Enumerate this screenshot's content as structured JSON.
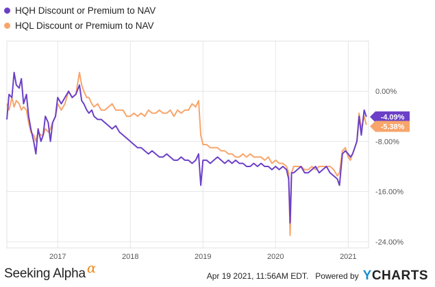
{
  "header": {
    "legend": [
      {
        "label": "HQH Discount or Premium to NAV",
        "color": "#6b3fc7"
      },
      {
        "label": "HQL Discount or Premium to NAV",
        "color": "#f7a56a"
      }
    ]
  },
  "chart_data": {
    "type": "line",
    "title": "",
    "xlabel": "",
    "ylabel": "",
    "xlim": [
      2016.3,
      2021.28
    ],
    "ylim": [
      -25,
      8
    ],
    "x_ticks": [
      {
        "value": 2017,
        "label": "2017"
      },
      {
        "value": 2018,
        "label": "2018"
      },
      {
        "value": 2019,
        "label": "2019"
      },
      {
        "value": 2020,
        "label": "2020"
      },
      {
        "value": 2021,
        "label": "2021"
      }
    ],
    "y_ticks": [
      {
        "value": 0,
        "label": "0.00%"
      },
      {
        "value": -8,
        "label": "-8.00%"
      },
      {
        "value": -16,
        "label": "-16.00%"
      },
      {
        "value": -24,
        "label": "-24.00%"
      }
    ],
    "grid": {
      "horizontal": true,
      "vertical": true
    },
    "series": [
      {
        "name": "HQH Discount or Premium to NAV",
        "color": "#6b3fc7",
        "end_label": "-4.09%",
        "x": [
          2016.3,
          2016.33,
          2016.37,
          2016.4,
          2016.43,
          2016.47,
          2016.5,
          2016.53,
          2016.57,
          2016.6,
          2016.63,
          2016.67,
          2016.7,
          2016.73,
          2016.77,
          2016.8,
          2016.83,
          2016.87,
          2016.9,
          2016.93,
          2016.97,
          2017.0,
          2017.05,
          2017.1,
          2017.15,
          2017.2,
          2017.25,
          2017.3,
          2017.33,
          2017.36,
          2017.4,
          2017.43,
          2017.47,
          2017.5,
          2017.55,
          2017.6,
          2017.65,
          2017.7,
          2017.75,
          2017.8,
          2017.85,
          2017.9,
          2017.95,
          2018.0,
          2018.05,
          2018.1,
          2018.15,
          2018.2,
          2018.25,
          2018.3,
          2018.35,
          2018.4,
          2018.45,
          2018.5,
          2018.55,
          2018.6,
          2018.65,
          2018.7,
          2018.75,
          2018.8,
          2018.85,
          2018.9,
          2018.94,
          2018.97,
          2019.0,
          2019.05,
          2019.1,
          2019.15,
          2019.2,
          2019.25,
          2019.3,
          2019.35,
          2019.4,
          2019.45,
          2019.5,
          2019.55,
          2019.6,
          2019.65,
          2019.7,
          2019.75,
          2019.8,
          2019.85,
          2019.9,
          2019.95,
          2020.0,
          2020.05,
          2020.1,
          2020.15,
          2020.18,
          2020.2,
          2020.22,
          2020.25,
          2020.3,
          2020.35,
          2020.4,
          2020.45,
          2020.5,
          2020.55,
          2020.6,
          2020.65,
          2020.7,
          2020.75,
          2020.8,
          2020.85,
          2020.88,
          2020.92,
          2020.96,
          2021.0,
          2021.03,
          2021.06,
          2021.09,
          2021.12,
          2021.15,
          2021.18,
          2021.22,
          2021.25
        ],
        "y": [
          -4.5,
          -0.5,
          -1,
          3,
          1,
          0.5,
          2,
          -2,
          -0.5,
          -4,
          -6,
          -8,
          -10,
          -6,
          -8,
          -7,
          -4,
          -5,
          -8,
          -5,
          -4,
          -1,
          -2,
          -1,
          0,
          -1,
          -0.5,
          1,
          -1.5,
          -2,
          -3,
          -3.5,
          -3,
          -4,
          -4.5,
          -4.5,
          -5,
          -5.5,
          -6,
          -5.5,
          -6.5,
          -7,
          -7.5,
          -8,
          -8.5,
          -9,
          -9,
          -9.5,
          -10,
          -9.5,
          -10,
          -10.5,
          -10.5,
          -10,
          -10.5,
          -11,
          -11,
          -10.5,
          -11,
          -11,
          -11.5,
          -11,
          -10,
          -15,
          -11,
          -11,
          -11.5,
          -11,
          -10.5,
          -11,
          -11.5,
          -11,
          -11.5,
          -11,
          -11.5,
          -11.5,
          -12,
          -12,
          -11.5,
          -12,
          -11.5,
          -12,
          -12,
          -12.5,
          -12,
          -12.5,
          -12,
          -12.5,
          -14,
          -21,
          -13,
          -13,
          -12.5,
          -12,
          -13,
          -13,
          -12.5,
          -12,
          -13,
          -12.5,
          -12,
          -13,
          -13.5,
          -14,
          -15,
          -10,
          -9.5,
          -10,
          -10.5,
          -10,
          -9,
          -8,
          -4,
          -7,
          -3,
          -4.09
        ]
      },
      {
        "name": "HQL Discount or Premium to NAV",
        "color": "#f7a56a",
        "end_label": "-5.38%",
        "x": [
          2016.3,
          2016.33,
          2016.37,
          2016.4,
          2016.43,
          2016.47,
          2016.5,
          2016.53,
          2016.57,
          2016.6,
          2016.63,
          2016.67,
          2016.7,
          2016.73,
          2016.77,
          2016.8,
          2016.83,
          2016.87,
          2016.9,
          2016.93,
          2016.97,
          2017.0,
          2017.05,
          2017.1,
          2017.15,
          2017.2,
          2017.25,
          2017.3,
          2017.33,
          2017.36,
          2017.4,
          2017.43,
          2017.47,
          2017.5,
          2017.55,
          2017.6,
          2017.65,
          2017.7,
          2017.75,
          2017.8,
          2017.85,
          2017.9,
          2017.95,
          2018.0,
          2018.05,
          2018.1,
          2018.15,
          2018.2,
          2018.25,
          2018.3,
          2018.35,
          2018.4,
          2018.45,
          2018.5,
          2018.55,
          2018.6,
          2018.65,
          2018.7,
          2018.75,
          2018.8,
          2018.85,
          2018.9,
          2018.94,
          2018.97,
          2019.0,
          2019.05,
          2019.1,
          2019.15,
          2019.2,
          2019.25,
          2019.3,
          2019.35,
          2019.4,
          2019.45,
          2019.5,
          2019.55,
          2019.6,
          2019.65,
          2019.7,
          2019.75,
          2019.8,
          2019.85,
          2019.9,
          2019.95,
          2020.0,
          2020.05,
          2020.1,
          2020.15,
          2020.18,
          2020.2,
          2020.22,
          2020.25,
          2020.3,
          2020.35,
          2020.4,
          2020.45,
          2020.5,
          2020.55,
          2020.6,
          2020.65,
          2020.7,
          2020.75,
          2020.8,
          2020.85,
          2020.88,
          2020.92,
          2020.96,
          2021.0,
          2021.03,
          2021.06,
          2021.09,
          2021.12,
          2021.15,
          2021.18,
          2021.22,
          2021.25
        ],
        "y": [
          -2,
          -3,
          -1,
          -2.5,
          -1.5,
          -2,
          -3,
          -2.5,
          -3,
          -5,
          -6.5,
          -7,
          -8,
          -6.5,
          -7,
          -7,
          -6,
          -6.5,
          -6,
          -5,
          -4,
          -2,
          -3,
          -2,
          0,
          -1,
          -0.5,
          3,
          1,
          0,
          -1,
          -1,
          -2,
          -2.5,
          -2,
          -3,
          -3,
          -2.5,
          -2,
          -3,
          -3,
          -3,
          -4,
          -4,
          -3.5,
          -4,
          -3.5,
          -4,
          -3,
          -3.5,
          -3.5,
          -3,
          -3.5,
          -3.5,
          -3,
          -4,
          -3,
          -3.5,
          -3,
          -3,
          -2,
          -2.5,
          -1.5,
          -7,
          -8.5,
          -8.5,
          -9,
          -9,
          -9,
          -9.5,
          -9.5,
          -10,
          -10,
          -10.5,
          -10.5,
          -10,
          -10.5,
          -10,
          -10.5,
          -10.5,
          -10.5,
          -11,
          -10.5,
          -11.5,
          -11,
          -11.5,
          -11.5,
          -12,
          -13,
          -23,
          -13,
          -12,
          -12,
          -12,
          -12.5,
          -12.5,
          -12,
          -12.5,
          -12,
          -12,
          -12,
          -12,
          -12.5,
          -13.5,
          -13,
          -9.5,
          -9,
          -10.5,
          -11,
          -10,
          -9,
          -8,
          -3.5,
          -6,
          -4,
          -5.38
        ]
      }
    ]
  },
  "footer": {
    "logo_text": "Seeking Alpha",
    "logo_mark": "α",
    "timestamp": "Apr 19 2021, 11:56AM EDT.",
    "powered_by": "Powered by",
    "brand_initial": "Y",
    "brand_rest": "CHARTS"
  }
}
